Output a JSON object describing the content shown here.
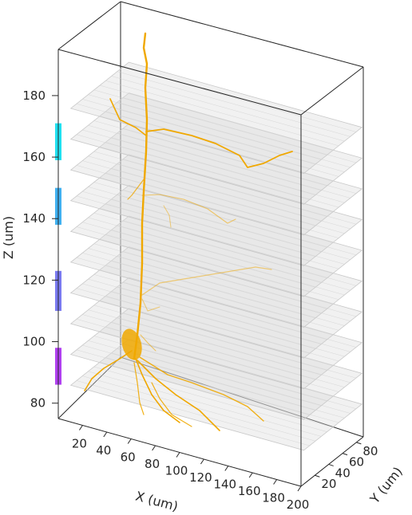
{
  "chart_data": {
    "type": "3d-morphology",
    "axes": {
      "x": {
        "label": "X (um)",
        "ticks": [
          "20",
          "40",
          "60",
          "80",
          "100",
          "120",
          "140",
          "160",
          "180",
          "200"
        ],
        "range": [
          0,
          200
        ]
      },
      "y": {
        "label": "Y (um)",
        "ticks": [
          "20",
          "40",
          "60",
          "80"
        ],
        "range": [
          0,
          90
        ]
      },
      "z": {
        "label": "Z (um)",
        "ticks": [
          "80",
          "100",
          "120",
          "140",
          "160",
          "180"
        ],
        "range": [
          75,
          195
        ]
      }
    },
    "box": true,
    "grid": false,
    "neuron": {
      "color": "#f0a800",
      "soma_z": 100
    },
    "imaging_planes": {
      "count": 10,
      "z_values": [
        86,
        96,
        106,
        116,
        126,
        136,
        146,
        156,
        166,
        176
      ],
      "color": "#d9d9d9"
    },
    "planes_bars": [
      {
        "z_range": [
          86,
          98
        ],
        "color": "#b040f0"
      },
      {
        "z_range": [
          110,
          123
        ],
        "color": "#7a7af0"
      },
      {
        "z_range": [
          138,
          150
        ],
        "color": "#40b0f0"
      },
      {
        "z_range": [
          159,
          171
        ],
        "color": "#20e0f0"
      }
    ]
  }
}
